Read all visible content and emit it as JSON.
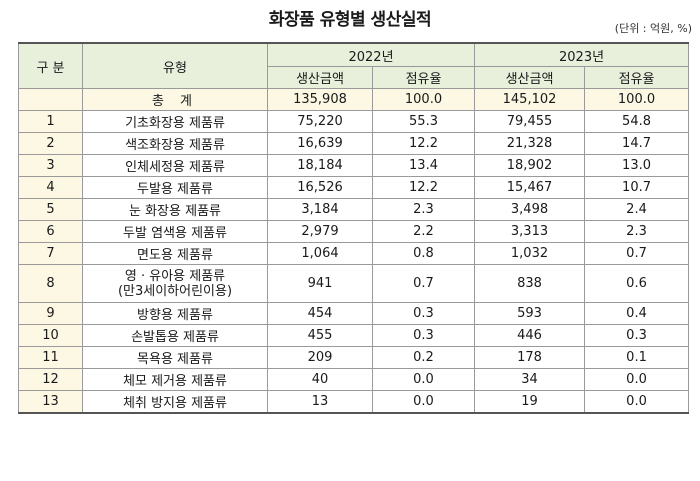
{
  "title": "화장품 유형별 생산실적",
  "unit": "(단위 : 억원, %)",
  "headers": {
    "category": "구 분",
    "type": "유형",
    "year1": "2022년",
    "year2": "2023년",
    "production": "생산금액",
    "share": "점유율"
  },
  "total": {
    "label": "총 계",
    "p2022": "135,908",
    "s2022": "100.0",
    "p2023": "145,102",
    "s2023": "100.0"
  },
  "rows": [
    {
      "no": "1",
      "type": "기초화장용 제품류",
      "p2022": "75,220",
      "s2022": "55.3",
      "p2023": "79,455",
      "s2023": "54.8"
    },
    {
      "no": "2",
      "type": "색조화장용 제품류",
      "p2022": "16,639",
      "s2022": "12.2",
      "p2023": "21,328",
      "s2023": "14.7"
    },
    {
      "no": "3",
      "type": "인체세정용 제품류",
      "p2022": "18,184",
      "s2022": "13.4",
      "p2023": "18,902",
      "s2023": "13.0"
    },
    {
      "no": "4",
      "type": "두발용 제품류",
      "p2022": "16,526",
      "s2022": "12.2",
      "p2023": "15,467",
      "s2023": "10.7"
    },
    {
      "no": "5",
      "type": "눈 화장용 제품류",
      "p2022": "3,184",
      "s2022": "2.3",
      "p2023": "3,498",
      "s2023": "2.4"
    },
    {
      "no": "6",
      "type": "두발 염색용 제품류",
      "p2022": "2,979",
      "s2022": "2.2",
      "p2023": "3,313",
      "s2023": "2.3"
    },
    {
      "no": "7",
      "type": "면도용 제품류",
      "p2022": "1,064",
      "s2022": "0.8",
      "p2023": "1,032",
      "s2023": "0.7"
    },
    {
      "no": "8",
      "type": "영 · 유아용 제품류",
      "type2": "(만3세이하어린이용)",
      "p2022": "941",
      "s2022": "0.7",
      "p2023": "838",
      "s2023": "0.6"
    },
    {
      "no": "9",
      "type": "방향용 제품류",
      "p2022": "454",
      "s2022": "0.3",
      "p2023": "593",
      "s2023": "0.4"
    },
    {
      "no": "10",
      "type": "손발톱용 제품류",
      "p2022": "455",
      "s2022": "0.3",
      "p2023": "446",
      "s2023": "0.3"
    },
    {
      "no": "11",
      "type": "목욕용 제품류",
      "p2022": "209",
      "s2022": "0.2",
      "p2023": "178",
      "s2023": "0.1"
    },
    {
      "no": "12",
      "type": "체모 제거용 제품류",
      "p2022": "40",
      "s2022": "0.0",
      "p2023": "34",
      "s2023": "0.0"
    },
    {
      "no": "13",
      "type": "체취 방지용 제품류",
      "p2022": "13",
      "s2022": "0.0",
      "p2023": "19",
      "s2023": "0.0"
    }
  ]
}
